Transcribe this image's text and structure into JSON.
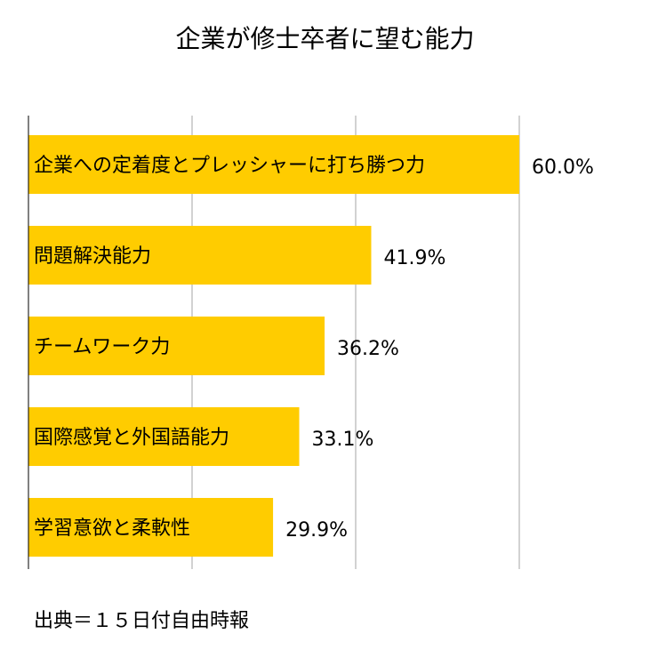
{
  "chart_data": {
    "type": "bar",
    "orientation": "horizontal",
    "title": "企業が修士卒者に望む能力",
    "categories": [
      "企業への定着度とプレッシャーに打ち勝つ力",
      "問題解決能力",
      "チームワーク力",
      "国際感覚と外国語能力",
      "学習意欲と柔軟性"
    ],
    "values": [
      60.0,
      41.9,
      36.2,
      33.1,
      29.9
    ],
    "value_labels": [
      "60.0%",
      "41.9%",
      "36.2%",
      "33.1%",
      "29.9%"
    ],
    "xlim": [
      0,
      60
    ],
    "vertical_gridlines_at": [
      20,
      40,
      60
    ],
    "grid": true,
    "legend": "none",
    "bar_color": "#FFCC00",
    "gridline_color": "#A6A6A6",
    "axis_color": "#000000"
  },
  "source_note": "出典＝１５日付自由時報"
}
